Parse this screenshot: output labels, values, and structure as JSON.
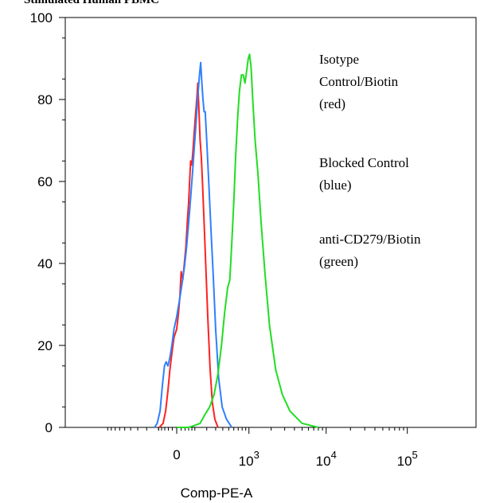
{
  "chart_data": {
    "type": "line",
    "title": "Stimulated Human PBMC",
    "xlabel": "Comp-PE-A",
    "ylabel": "",
    "ylim": [
      0,
      100
    ],
    "y_ticks": [
      0,
      20,
      40,
      60,
      80,
      100
    ],
    "x_scale": "biexponential",
    "x_ticks": [
      {
        "value": 0,
        "label": "0",
        "exp": ""
      },
      {
        "value": 1000,
        "label": "10",
        "exp": "3"
      },
      {
        "value": 10000,
        "label": "10",
        "exp": "4"
      },
      {
        "value": 100000,
        "label": "10",
        "exp": "5"
      }
    ],
    "grid": false,
    "legend": [
      {
        "lines": [
          "Isotype",
          "Control/Biotin",
          "(red)"
        ]
      },
      {
        "lines": [
          "Blocked Control",
          "(blue)"
        ]
      },
      {
        "lines": [
          "anti-CD279/Biotin",
          "(green)"
        ]
      }
    ],
    "series": [
      {
        "color": "#ff2020",
        "points": [
          [
            -95,
            0
          ],
          [
            -70,
            1
          ],
          [
            -55,
            4
          ],
          [
            -42,
            9
          ],
          [
            -32,
            14
          ],
          [
            -22,
            18
          ],
          [
            -12,
            22
          ],
          [
            -6,
            23
          ],
          [
            0,
            24
          ],
          [
            8,
            28
          ],
          [
            14,
            32
          ],
          [
            20,
            38
          ],
          [
            28,
            36
          ],
          [
            36,
            40
          ],
          [
            44,
            44
          ],
          [
            52,
            50
          ],
          [
            60,
            55
          ],
          [
            66,
            60
          ],
          [
            72,
            65
          ],
          [
            80,
            64
          ],
          [
            88,
            68
          ],
          [
            96,
            72
          ],
          [
            104,
            76
          ],
          [
            114,
            80
          ],
          [
            122,
            84
          ],
          [
            130,
            78
          ],
          [
            140,
            70
          ],
          [
            150,
            66
          ],
          [
            160,
            60
          ],
          [
            175,
            50
          ],
          [
            190,
            40
          ],
          [
            210,
            27
          ],
          [
            235,
            14
          ],
          [
            260,
            6
          ],
          [
            290,
            2
          ],
          [
            330,
            0
          ]
        ]
      },
      {
        "color": "#2f7fff",
        "points": [
          [
            -130,
            0
          ],
          [
            -110,
            1
          ],
          [
            -90,
            4
          ],
          [
            -75,
            10
          ],
          [
            -62,
            15
          ],
          [
            -52,
            16
          ],
          [
            -42,
            15
          ],
          [
            -32,
            17
          ],
          [
            -22,
            20
          ],
          [
            -12,
            24
          ],
          [
            0,
            27
          ],
          [
            12,
            31
          ],
          [
            24,
            35
          ],
          [
            36,
            39
          ],
          [
            48,
            44
          ],
          [
            60,
            50
          ],
          [
            72,
            56
          ],
          [
            84,
            62
          ],
          [
            96,
            68
          ],
          [
            108,
            74
          ],
          [
            120,
            80
          ],
          [
            135,
            86
          ],
          [
            145,
            89
          ],
          [
            155,
            84
          ],
          [
            165,
            80
          ],
          [
            175,
            77
          ],
          [
            185,
            77
          ],
          [
            200,
            70
          ],
          [
            220,
            60
          ],
          [
            245,
            48
          ],
          [
            270,
            37
          ],
          [
            300,
            24
          ],
          [
            340,
            12
          ],
          [
            390,
            5
          ],
          [
            460,
            2
          ],
          [
            560,
            0
          ]
        ]
      },
      {
        "color": "#22dd22",
        "points": [
          [
            0,
            0
          ],
          [
            20,
            0
          ],
          [
            60,
            0
          ],
          [
            100,
            0.5
          ],
          [
            140,
            1
          ],
          [
            180,
            3
          ],
          [
            230,
            5
          ],
          [
            280,
            8
          ],
          [
            330,
            13
          ],
          [
            380,
            20
          ],
          [
            430,
            28
          ],
          [
            480,
            34
          ],
          [
            520,
            36
          ],
          [
            560,
            45
          ],
          [
            600,
            55
          ],
          [
            640,
            66
          ],
          [
            690,
            76
          ],
          [
            730,
            82
          ],
          [
            780,
            86
          ],
          [
            830,
            86
          ],
          [
            880,
            84
          ],
          [
            930,
            87
          ],
          [
            980,
            90
          ],
          [
            1020,
            91
          ],
          [
            1070,
            88
          ],
          [
            1130,
            80
          ],
          [
            1220,
            70
          ],
          [
            1330,
            62
          ],
          [
            1470,
            50
          ],
          [
            1650,
            38
          ],
          [
            1900,
            25
          ],
          [
            2300,
            14
          ],
          [
            2800,
            8
          ],
          [
            3500,
            4
          ],
          [
            5000,
            1
          ],
          [
            8000,
            0
          ]
        ]
      }
    ]
  }
}
